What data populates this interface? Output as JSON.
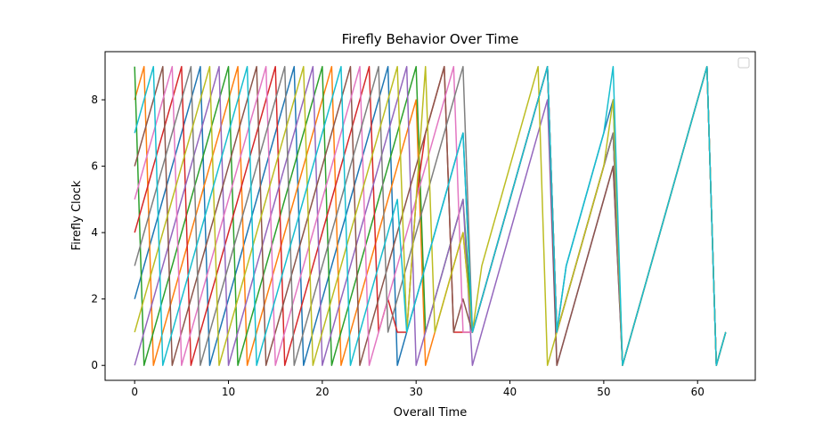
{
  "chart_data": {
    "type": "line",
    "title": "Firefly Behavior Over Time",
    "xlabel": "Overall Time",
    "ylabel": "Firefly Clock",
    "xlim": [
      -3.15,
      66.15
    ],
    "ylim": [
      -0.45,
      9.45
    ],
    "xticks": [
      0,
      10,
      20,
      30,
      40,
      50,
      60
    ],
    "yticks": [
      0,
      2,
      4,
      6,
      8
    ],
    "grid": false,
    "legend": {
      "position": "top-right",
      "entries": []
    },
    "series": [
      {
        "color": "#1f77b4",
        "x": [
          0,
          1,
          2,
          3,
          4,
          5,
          6,
          7,
          8,
          9,
          10,
          11,
          12,
          13,
          14,
          15,
          16,
          17,
          18,
          19,
          20,
          21,
          22,
          23,
          24,
          25,
          26,
          27,
          28,
          29,
          30,
          31,
          32,
          33,
          34,
          35,
          36,
          37,
          38,
          39,
          40,
          41,
          42,
          43,
          44,
          45,
          46,
          47,
          48,
          49,
          50,
          51,
          52,
          53,
          54,
          55,
          56,
          57,
          58,
          59,
          60,
          61,
          62,
          63
        ],
        "y": [
          2,
          3,
          4,
          5,
          6,
          7,
          8,
          9,
          0,
          1,
          2,
          3,
          4,
          5,
          6,
          7,
          8,
          9,
          0,
          1,
          2,
          3,
          4,
          5,
          6,
          7,
          8,
          9,
          0,
          1,
          2,
          3,
          4,
          5,
          6,
          7,
          1,
          2,
          3,
          4,
          5,
          6,
          7,
          8,
          9,
          1,
          3,
          4,
          5,
          6,
          7,
          8,
          0,
          1,
          2,
          3,
          4,
          5,
          6,
          7,
          8,
          9,
          0,
          1
        ]
      },
      {
        "color": "#ff7f0e",
        "x": [
          0,
          1,
          2,
          3,
          4,
          5,
          6,
          7,
          8,
          9,
          10,
          11,
          12,
          13,
          14,
          15,
          16,
          17,
          18,
          19,
          20,
          21,
          22,
          23,
          24,
          25,
          26,
          27,
          28,
          29,
          30,
          31,
          32,
          33,
          34,
          35,
          36,
          37,
          38,
          39,
          40,
          41,
          42,
          43,
          44,
          45,
          46,
          47,
          48,
          49,
          50,
          51,
          52,
          53,
          54,
          55,
          56,
          57,
          58,
          59,
          60,
          61,
          62,
          63
        ],
        "y": [
          8,
          9,
          0,
          1,
          2,
          3,
          4,
          5,
          6,
          7,
          8,
          9,
          0,
          1,
          2,
          3,
          4,
          5,
          6,
          7,
          8,
          9,
          0,
          1,
          2,
          3,
          4,
          5,
          6,
          7,
          8,
          0,
          1,
          2,
          3,
          4,
          1,
          2,
          3,
          4,
          5,
          6,
          7,
          8,
          9,
          1,
          2,
          3,
          4,
          5,
          6,
          7,
          0,
          1,
          2,
          3,
          4,
          5,
          6,
          7,
          8,
          9,
          0,
          1
        ]
      },
      {
        "color": "#2ca02c",
        "x": [
          0,
          1,
          2,
          3,
          4,
          5,
          6,
          7,
          8,
          9,
          10,
          11,
          12,
          13,
          14,
          15,
          16,
          17,
          18,
          19,
          20,
          21,
          22,
          23,
          24,
          25,
          26,
          27,
          28,
          29,
          30,
          31,
          32,
          33,
          34,
          35,
          36,
          37,
          38,
          39,
          40,
          41,
          42,
          43,
          44,
          45,
          46,
          47,
          48,
          49,
          50,
          51,
          52,
          53,
          54,
          55,
          56,
          57,
          58,
          59,
          60,
          61,
          62,
          63
        ],
        "y": [
          9,
          0,
          1,
          2,
          3,
          4,
          5,
          6,
          7,
          8,
          9,
          0,
          1,
          2,
          3,
          4,
          5,
          6,
          7,
          8,
          9,
          0,
          1,
          2,
          3,
          4,
          5,
          6,
          7,
          8,
          9,
          1,
          2,
          3,
          4,
          5,
          1,
          2,
          3,
          4,
          5,
          6,
          7,
          8,
          9,
          1,
          2,
          3,
          4,
          5,
          6,
          7,
          0,
          1,
          2,
          3,
          4,
          5,
          6,
          7,
          8,
          9,
          0,
          1
        ]
      },
      {
        "color": "#d62728",
        "x": [
          0,
          1,
          2,
          3,
          4,
          5,
          6,
          7,
          8,
          9,
          10,
          11,
          12,
          13,
          14,
          15,
          16,
          17,
          18,
          19,
          20,
          21,
          22,
          23,
          24,
          25,
          26,
          27,
          28,
          29,
          30,
          31,
          32,
          33,
          34,
          35,
          36,
          37,
          38,
          39,
          40,
          41,
          42,
          43,
          44,
          45,
          46,
          47,
          48,
          49,
          50,
          51,
          52,
          53,
          54,
          55,
          56,
          57,
          58,
          59,
          60,
          61,
          62,
          63
        ],
        "y": [
          4,
          5,
          6,
          7,
          8,
          9,
          0,
          1,
          2,
          3,
          4,
          5,
          6,
          7,
          8,
          9,
          0,
          1,
          2,
          3,
          4,
          5,
          6,
          7,
          8,
          9,
          1,
          2,
          1,
          1,
          5,
          7,
          8,
          9,
          1,
          1,
          1,
          2,
          3,
          4,
          5,
          6,
          7,
          8,
          9,
          1,
          2,
          3,
          4,
          5,
          6,
          7,
          0,
          1,
          2,
          3,
          4,
          5,
          6,
          7,
          8,
          9,
          0,
          1
        ]
      },
      {
        "color": "#9467bd",
        "x": [
          0,
          1,
          2,
          3,
          4,
          5,
          6,
          7,
          8,
          9,
          10,
          11,
          12,
          13,
          14,
          15,
          16,
          17,
          18,
          19,
          20,
          21,
          22,
          23,
          24,
          25,
          26,
          27,
          28,
          29,
          30,
          31,
          32,
          33,
          34,
          35,
          36,
          37,
          38,
          39,
          40,
          41,
          42,
          43,
          44,
          45,
          46,
          47,
          48,
          49,
          50,
          51,
          52,
          53,
          54,
          55,
          56,
          57,
          58,
          59,
          60,
          61,
          62,
          63
        ],
        "y": [
          0,
          1,
          2,
          3,
          4,
          5,
          6,
          7,
          8,
          9,
          0,
          1,
          2,
          3,
          4,
          5,
          6,
          7,
          8,
          9,
          0,
          1,
          2,
          3,
          4,
          5,
          6,
          7,
          8,
          9,
          0,
          1,
          2,
          3,
          4,
          5,
          0,
          1,
          2,
          3,
          4,
          5,
          6,
          7,
          8,
          0,
          1,
          2,
          3,
          4,
          5,
          6,
          0,
          1,
          2,
          3,
          4,
          5,
          6,
          7,
          8,
          9,
          0,
          1
        ]
      },
      {
        "color": "#8c564b",
        "x": [
          0,
          1,
          2,
          3,
          4,
          5,
          6,
          7,
          8,
          9,
          10,
          11,
          12,
          13,
          14,
          15,
          16,
          17,
          18,
          19,
          20,
          21,
          22,
          23,
          24,
          25,
          26,
          27,
          28,
          29,
          30,
          31,
          32,
          33,
          34,
          35,
          36,
          37,
          38,
          39,
          40,
          41,
          42,
          43,
          44,
          45,
          46,
          47,
          48,
          49,
          50,
          51,
          52,
          53,
          54,
          55,
          56,
          57,
          58,
          59,
          60,
          61,
          62,
          63
        ],
        "y": [
          6,
          7,
          8,
          9,
          0,
          1,
          2,
          3,
          4,
          5,
          6,
          7,
          8,
          9,
          0,
          1,
          2,
          3,
          4,
          5,
          6,
          7,
          8,
          9,
          0,
          1,
          2,
          3,
          4,
          5,
          6,
          7,
          8,
          9,
          1,
          2,
          1,
          2,
          3,
          4,
          5,
          6,
          7,
          8,
          9,
          0,
          1,
          2,
          3,
          4,
          5,
          6,
          0,
          1,
          2,
          3,
          4,
          5,
          6,
          7,
          8,
          9,
          0,
          1
        ]
      },
      {
        "color": "#e377c2",
        "x": [
          0,
          1,
          2,
          3,
          4,
          5,
          6,
          7,
          8,
          9,
          10,
          11,
          12,
          13,
          14,
          15,
          16,
          17,
          18,
          19,
          20,
          21,
          22,
          23,
          24,
          25,
          26,
          27,
          28,
          29,
          30,
          31,
          32,
          33,
          34,
          35,
          36,
          37,
          38,
          39,
          40,
          41,
          42,
          43,
          44,
          45,
          46,
          47,
          48,
          49,
          50,
          51,
          52,
          53,
          54,
          55,
          56,
          57,
          58,
          59,
          60,
          61,
          62,
          63
        ],
        "y": [
          5,
          6,
          7,
          8,
          9,
          0,
          1,
          2,
          3,
          4,
          5,
          6,
          7,
          8,
          9,
          0,
          1,
          2,
          3,
          4,
          5,
          6,
          7,
          8,
          9,
          0,
          1,
          2,
          3,
          4,
          5,
          6,
          7,
          8,
          9,
          1,
          1,
          2,
          3,
          4,
          5,
          6,
          7,
          8,
          9,
          1,
          2,
          3,
          4,
          5,
          6,
          7,
          0,
          1,
          2,
          3,
          4,
          5,
          6,
          7,
          8,
          9,
          0,
          1
        ]
      },
      {
        "color": "#7f7f7f",
        "x": [
          0,
          1,
          2,
          3,
          4,
          5,
          6,
          7,
          8,
          9,
          10,
          11,
          12,
          13,
          14,
          15,
          16,
          17,
          18,
          19,
          20,
          21,
          22,
          23,
          24,
          25,
          26,
          27,
          28,
          29,
          30,
          31,
          32,
          33,
          34,
          35,
          36,
          37,
          38,
          39,
          40,
          41,
          42,
          43,
          44,
          45,
          46,
          47,
          48,
          49,
          50,
          51,
          52,
          53,
          54,
          55,
          56,
          57,
          58,
          59,
          60,
          61,
          62,
          63
        ],
        "y": [
          3,
          4,
          5,
          6,
          7,
          8,
          9,
          0,
          1,
          2,
          3,
          4,
          5,
          6,
          7,
          8,
          9,
          0,
          1,
          2,
          3,
          4,
          5,
          6,
          7,
          8,
          9,
          1,
          2,
          3,
          4,
          5,
          6,
          7,
          8,
          9,
          1,
          2,
          3,
          4,
          5,
          6,
          7,
          8,
          9,
          1,
          2,
          3,
          4,
          5,
          6,
          7,
          0,
          1,
          2,
          3,
          4,
          5,
          6,
          7,
          8,
          9,
          0,
          1
        ]
      },
      {
        "color": "#bcbd22",
        "x": [
          0,
          1,
          2,
          3,
          4,
          5,
          6,
          7,
          8,
          9,
          10,
          11,
          12,
          13,
          14,
          15,
          16,
          17,
          18,
          19,
          20,
          21,
          22,
          23,
          24,
          25,
          26,
          27,
          28,
          29,
          30,
          31,
          32,
          33,
          34,
          35,
          36,
          37,
          38,
          39,
          40,
          41,
          42,
          43,
          44,
          45,
          46,
          47,
          48,
          49,
          50,
          51,
          52,
          53,
          54,
          55,
          56,
          57,
          58,
          59,
          60,
          61,
          62,
          63
        ],
        "y": [
          1,
          2,
          3,
          4,
          5,
          6,
          7,
          8,
          9,
          0,
          1,
          2,
          3,
          4,
          5,
          6,
          7,
          8,
          9,
          0,
          1,
          2,
          3,
          4,
          5,
          6,
          7,
          8,
          9,
          1,
          5,
          9,
          1,
          2,
          3,
          4,
          1,
          3,
          4,
          5,
          6,
          7,
          8,
          9,
          0,
          1,
          2,
          3,
          4,
          5,
          6,
          8,
          0,
          1,
          2,
          3,
          4,
          5,
          6,
          7,
          8,
          9,
          0,
          1
        ]
      },
      {
        "color": "#17becf",
        "x": [
          0,
          1,
          2,
          3,
          4,
          5,
          6,
          7,
          8,
          9,
          10,
          11,
          12,
          13,
          14,
          15,
          16,
          17,
          18,
          19,
          20,
          21,
          22,
          23,
          24,
          25,
          26,
          27,
          28,
          29,
          30,
          31,
          32,
          33,
          34,
          35,
          36,
          37,
          38,
          39,
          40,
          41,
          42,
          43,
          44,
          45,
          46,
          47,
          48,
          49,
          50,
          51,
          52,
          53,
          54,
          55,
          56,
          57,
          58,
          59,
          60,
          61,
          62,
          63
        ],
        "y": [
          7,
          8,
          9,
          0,
          1,
          2,
          3,
          4,
          5,
          6,
          7,
          8,
          9,
          0,
          1,
          2,
          3,
          4,
          5,
          6,
          7,
          8,
          9,
          0,
          1,
          2,
          3,
          4,
          5,
          1,
          2,
          3,
          4,
          5,
          6,
          7,
          1,
          2,
          3,
          4,
          5,
          6,
          7,
          8,
          9,
          1,
          3,
          4,
          5,
          6,
          7,
          9,
          0,
          1,
          2,
          3,
          4,
          5,
          6,
          7,
          8,
          9,
          0,
          1
        ]
      }
    ]
  }
}
